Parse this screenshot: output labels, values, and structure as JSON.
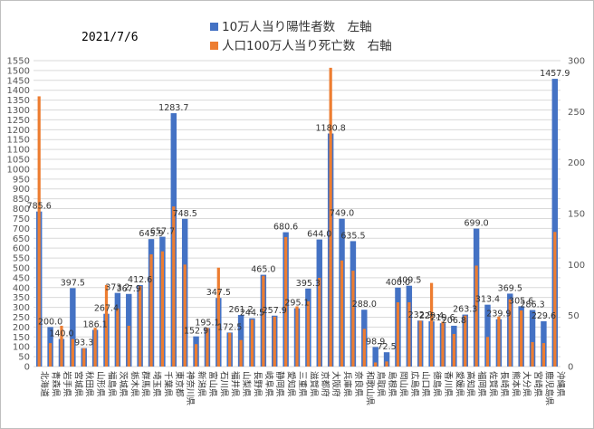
{
  "chart_data": {
    "type": "bar",
    "date": "2021/7/6",
    "colors": {
      "positives": "#4472C4",
      "deaths": "#ED7D31"
    },
    "series": [
      {
        "name": "10万人当り陽性者数　左軸",
        "axis": "left"
      },
      {
        "name": "人口100万人当り死亡数　右軸",
        "axis": "right"
      }
    ],
    "left_axis": {
      "min": 0,
      "max": 1550,
      "step": 50
    },
    "right_axis": {
      "min": 0,
      "max": 300,
      "step": 50
    },
    "categories": [
      "北海道",
      "青森県",
      "岩手県",
      "宮城県",
      "秋田県",
      "山形県",
      "福島県",
      "茨城県",
      "栃木県",
      "群馬県",
      "埼玉県",
      "千葉県",
      "東京都",
      "神奈川県",
      "新潟県",
      "富山県",
      "石川県",
      "福井県",
      "山梨県",
      "長野県",
      "岐阜県",
      "静岡県",
      "愛知県",
      "三重県",
      "滋賀県",
      "京都府",
      "大阪府",
      "兵庫県",
      "奈良県",
      "和歌山県",
      "鳥取県",
      "島根県",
      "岡山県",
      "広島県",
      "山口県",
      "徳島県",
      "香川県",
      "愛媛県",
      "高知県",
      "福岡県",
      "佐賀県",
      "長崎県",
      "熊本県",
      "大分県",
      "宮崎県",
      "鹿児島県",
      "沖縄県"
    ],
    "positives": [
      785.6,
      200.0,
      140.0,
      397.5,
      93.3,
      186.1,
      267.4,
      373.2,
      367.9,
      412.6,
      645.9,
      657.7,
      1283.7,
      748.5,
      152.9,
      195.1,
      347.5,
      172.5,
      261.2,
      244.5,
      465.0,
      257.9,
      680.6,
      295.1,
      395.3,
      644.0,
      1180.8,
      749.0,
      635.5,
      288.0,
      98.9,
      72.5,
      400.0,
      409.5,
      232.9,
      229.4,
      219.6,
      206.8,
      263.3,
      699.0,
      313.4,
      239.9,
      369.5,
      305.6,
      286.3,
      229.6,
      1457.9
    ],
    "deaths": [
      265,
      23,
      40,
      27,
      18,
      38,
      80,
      57,
      40,
      79,
      110,
      113,
      157,
      100,
      22,
      38,
      97,
      33,
      26,
      46,
      89,
      49,
      127,
      59,
      64,
      87,
      293,
      104,
      94,
      37,
      4,
      5,
      63,
      63,
      45,
      82,
      44,
      32,
      50,
      99,
      29,
      49,
      66,
      55,
      24,
      23,
      132
    ],
    "positive_labels": [
      "785.6",
      "200.0",
      "140.0",
      "397.5",
      "93.3",
      "186.1",
      "267.4",
      "373.2",
      "367.9",
      "412.6",
      "645.9",
      "657.7",
      "1283.7",
      "748.5",
      "152.9",
      "195.1",
      "347.5",
      "172.5",
      "261.2",
      "244.5",
      "465.0",
      "257.9",
      "680.6",
      "295.1",
      "395.3",
      "644.0",
      "1180.8",
      "749.0",
      "635.5",
      "288.0",
      "98.9",
      "72.5",
      "400.0",
      "409.5",
      "232.9",
      "229.4",
      "219.6",
      "206.8",
      "263.3",
      "699.0",
      "313.4",
      "239.9",
      "369.5",
      "305.6",
      "286.3",
      "229.6",
      "1457.9"
    ]
  }
}
